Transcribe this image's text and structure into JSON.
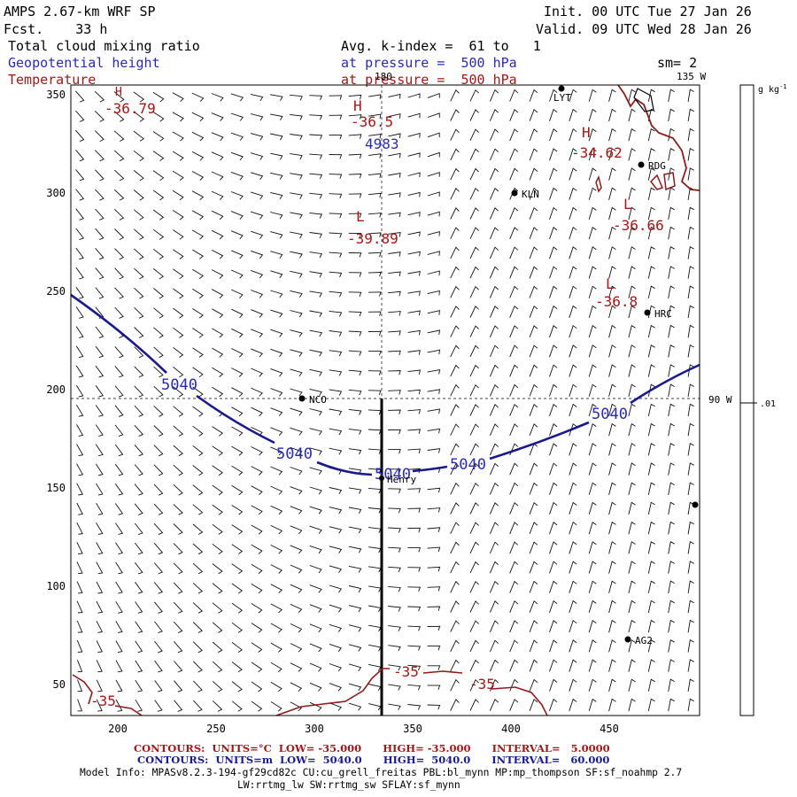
{
  "header": {
    "model_title": "AMPS 2.67-km WRF SP",
    "forecast_line": "Fcst.    33 h",
    "init_line": "Init. 00 UTC Tue 27 Jan 26",
    "valid_line": "Valid. 09 UTC Wed 28 Jan 26",
    "field_cloud": "Total cloud mixing ratio",
    "field_geopotential": "Geopotential height",
    "field_temperature": "Temperature",
    "avg_kindex": "Avg. k-index =  61 to   1",
    "pressure_blue": "at pressure =  500 hPa",
    "pressure_red": "at pressure =  500 hPa",
    "smoothing": "sm= 2",
    "lon_label_top": "135 W",
    "lon_label_180": "180"
  },
  "map": {
    "x_axis_ticks": [
      "200",
      "250",
      "300",
      "350",
      "400",
      "450"
    ],
    "y_axis_ticks": [
      "350",
      "300",
      "250",
      "200",
      "150",
      "100",
      "50"
    ],
    "lon_label_right": "90 W",
    "stations": [
      "LYT",
      "RDG",
      "KLN",
      "HRC",
      "NCO",
      "Henry",
      "AG2"
    ],
    "temperature_labels": [
      {
        "text": "H",
        "kind": "symbol"
      },
      {
        "text": "-36.79",
        "kind": "value"
      },
      {
        "text": "H",
        "kind": "symbol"
      },
      {
        "text": "-36.5",
        "kind": "value"
      },
      {
        "text": "H",
        "kind": "symbol"
      },
      {
        "text": "-34.62",
        "kind": "value"
      },
      {
        "text": "L",
        "kind": "symbol"
      },
      {
        "text": "-39.89",
        "kind": "value"
      },
      {
        "text": "L",
        "kind": "symbol"
      },
      {
        "text": "-36.66",
        "kind": "value"
      },
      {
        "text": "L",
        "kind": "symbol"
      },
      {
        "text": "-36.8",
        "kind": "value"
      },
      {
        "text": "-35",
        "kind": "contour"
      },
      {
        "text": "-35",
        "kind": "contour"
      },
      {
        "text": "-35",
        "kind": "contour"
      }
    ],
    "geopotential_labels": [
      "4983",
      "5040",
      "5040",
      "5040",
      "5040",
      "5040"
    ],
    "colors": {
      "temperature": "#a01818",
      "geopotential": "#1a1a8c",
      "frame": "#000000"
    }
  },
  "colorbar": {
    "units": "g kg",
    "units_exp": "-1",
    "tick_value": ".01"
  },
  "footer": {
    "contours_red": "CONTOURS:  UNITS=°C  LOW= -35.000      HIGH= -35.000      INTERVAL=   5.0000",
    "contours_blue": "CONTOURS:  UNITS=m  LOW=  5040.0      HIGH=  5040.0      INTERVAL=   60.000",
    "model_info_1": "Model Info: MPASv8.2.3-194-gf29cd82c CU:cu_grell_freitas PBL:bl_mynn MP:mp_thompson SF:sf_noahmp 2.7",
    "model_info_2": "LW:rrtmg_lw SW:rrtmg_sw SFLAY:sf_mynn"
  }
}
